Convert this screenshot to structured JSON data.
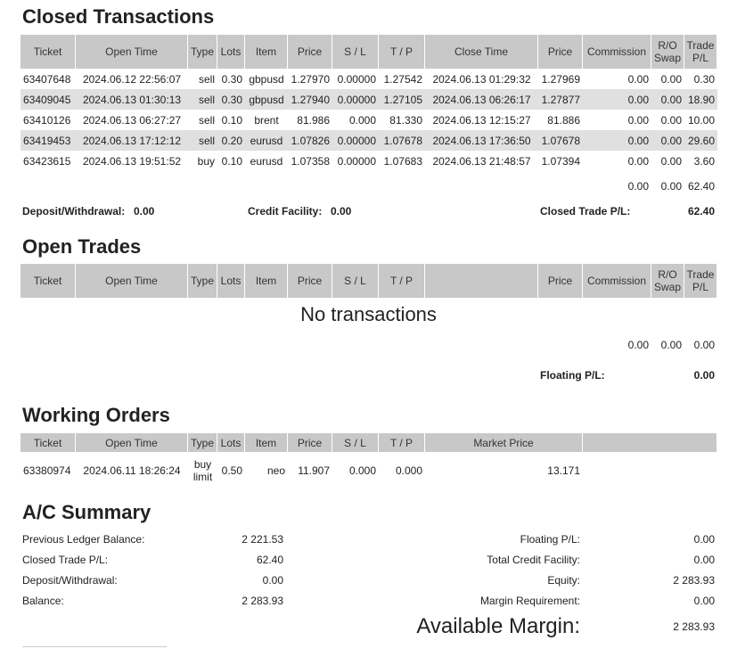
{
  "closed": {
    "title": "Closed Transactions",
    "headers": [
      "Ticket",
      "Open Time",
      "Type",
      "Lots",
      "Item",
      "Price",
      "S / L",
      "T / P",
      "Close Time",
      "Price",
      "Commission",
      "R/O Swap",
      "Trade P/L"
    ],
    "rows": [
      [
        "63407648",
        "2024.06.12 22:56:07",
        "sell",
        "0.30",
        "gbpusd",
        "1.27970",
        "0.00000",
        "1.27542",
        "2024.06.13 01:29:32",
        "1.27969",
        "0.00",
        "0.00",
        "0.30"
      ],
      [
        "63409045",
        "2024.06.13 01:30:13",
        "sell",
        "0.30",
        "gbpusd",
        "1.27940",
        "0.00000",
        "1.27105",
        "2024.06.13 06:26:17",
        "1.27877",
        "0.00",
        "0.00",
        "18.90"
      ],
      [
        "63410126",
        "2024.06.13 06:27:27",
        "sell",
        "0.10",
        "brent",
        "81.986",
        "0.000",
        "81.330",
        "2024.06.13 12:15:27",
        "81.886",
        "0.00",
        "0.00",
        "10.00"
      ],
      [
        "63419453",
        "2024.06.13 17:12:12",
        "sell",
        "0.20",
        "eurusd",
        "1.07826",
        "0.00000",
        "1.07678",
        "2024.06.13 17:36:50",
        "1.07678",
        "0.00",
        "0.00",
        "29.60"
      ],
      [
        "63423615",
        "2024.06.13 19:51:52",
        "buy",
        "0.10",
        "eurusd",
        "1.07358",
        "0.00000",
        "1.07683",
        "2024.06.13 21:48:57",
        "1.07394",
        "0.00",
        "0.00",
        "3.60"
      ]
    ],
    "totals": [
      "0.00",
      "0.00",
      "62.40"
    ],
    "footer": [
      {
        "label": "Deposit/Withdrawal:",
        "value": "0.00"
      },
      {
        "label": "Credit Facility:",
        "value": "0.00"
      },
      {
        "label": "Closed Trade P/L:",
        "value": "62.40"
      }
    ]
  },
  "open": {
    "title": "Open Trades",
    "headers": [
      "Ticket",
      "Open Time",
      "Type",
      "Lots",
      "Item",
      "Price",
      "S / L",
      "T / P",
      "Price",
      "Commission",
      "R/O Swap",
      "Trade P/L"
    ],
    "empty": "No transactions",
    "totals": [
      "0.00",
      "0.00",
      "0.00"
    ],
    "floating": {
      "label": "Floating P/L:",
      "value": "0.00"
    }
  },
  "working": {
    "title": "Working Orders",
    "headers": [
      "Ticket",
      "Open Time",
      "Type",
      "Lots",
      "Item",
      "Price",
      "S / L",
      "T / P",
      "Market Price"
    ],
    "rows": [
      [
        "63380974",
        "2024.06.11 18:26:24",
        "buy limit",
        "0.50",
        "neo",
        "11.907",
        "0.000",
        "0.000",
        "13.171"
      ]
    ]
  },
  "summary": {
    "title": "A/C Summary",
    "left": [
      {
        "label": "Previous Ledger Balance:",
        "value": "2 221.53"
      },
      {
        "label": "Closed Trade P/L:",
        "value": "62.40"
      },
      {
        "label": "Deposit/Withdrawal:",
        "value": "0.00"
      },
      {
        "label": "Balance:",
        "value": "2 283.93"
      }
    ],
    "right": [
      {
        "label": "Floating P/L:",
        "value": "0.00"
      },
      {
        "label": "Total Credit Facility:",
        "value": "0.00"
      },
      {
        "label": "Equity:",
        "value": "2 283.93"
      },
      {
        "label": "Margin Requirement:",
        "value": "0.00"
      }
    ],
    "available": {
      "label": "Available Margin:",
      "value": "2 283.93"
    }
  }
}
